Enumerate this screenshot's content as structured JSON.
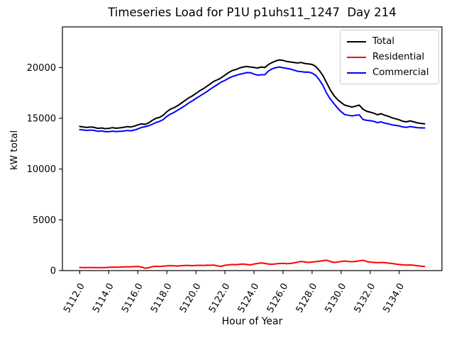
{
  "chart_data": {
    "type": "line",
    "title": "Timeseries Load for P1U p1uhs11_1247  Day 214",
    "xlabel": "Hour of Year",
    "ylabel": "kW total",
    "xlim": [
      5110.81,
      5136.94
    ],
    "ylim": [
      0,
      24000
    ],
    "grid": false,
    "xtick_values": [
      5112,
      5114,
      5116,
      5118,
      5120,
      5122,
      5124,
      5126,
      5128,
      5130,
      5132,
      5134
    ],
    "xtick_labels": [
      "5112.0",
      "5114.0",
      "5116.0",
      "5118.0",
      "5120.0",
      "5122.0",
      "5124.0",
      "5126.0",
      "5128.0",
      "5130.0",
      "5132.0",
      "5134.0"
    ],
    "ytick_values": [
      0,
      5000,
      10000,
      15000,
      20000
    ],
    "ytick_labels": [
      "0",
      "5000",
      "10000",
      "15000",
      "20000"
    ],
    "legend": {
      "position": "upper right",
      "entries": [
        "Total",
        "Residential",
        "Commercial"
      ]
    },
    "x": [
      5112.0,
      5112.25,
      5112.5,
      5112.75,
      5113.0,
      5113.25,
      5113.5,
      5113.75,
      5114.0,
      5114.25,
      5114.5,
      5114.75,
      5115.0,
      5115.25,
      5115.5,
      5115.75,
      5116.0,
      5116.25,
      5116.5,
      5116.75,
      5117.0,
      5117.25,
      5117.5,
      5117.75,
      5118.0,
      5118.25,
      5118.5,
      5118.75,
      5119.0,
      5119.25,
      5119.5,
      5119.75,
      5120.0,
      5120.25,
      5120.5,
      5120.75,
      5121.0,
      5121.25,
      5121.5,
      5121.75,
      5122.0,
      5122.25,
      5122.5,
      5122.75,
      5123.0,
      5123.25,
      5123.5,
      5123.75,
      5124.0,
      5124.25,
      5124.5,
      5124.75,
      5125.0,
      5125.25,
      5125.5,
      5125.75,
      5126.0,
      5126.25,
      5126.5,
      5126.75,
      5127.0,
      5127.25,
      5127.5,
      5127.75,
      5128.0,
      5128.25,
      5128.5,
      5128.75,
      5129.0,
      5129.25,
      5129.5,
      5129.75,
      5130.0,
      5130.25,
      5130.5,
      5130.75,
      5131.0,
      5131.25,
      5131.5,
      5131.75,
      5132.0,
      5132.25,
      5132.5,
      5132.75,
      5133.0,
      5133.25,
      5133.5,
      5133.75,
      5134.0,
      5134.25,
      5134.5,
      5134.75,
      5135.0,
      5135.25,
      5135.5,
      5135.75
    ],
    "series": [
      {
        "name": "Total",
        "color": "#000000",
        "values": [
          14200,
          14150,
          14100,
          14150,
          14100,
          14000,
          14050,
          13980,
          14000,
          14080,
          14020,
          14060,
          14100,
          14180,
          14140,
          14220,
          14350,
          14450,
          14400,
          14550,
          14800,
          15000,
          15100,
          15300,
          15650,
          15900,
          16050,
          16250,
          16500,
          16750,
          17000,
          17200,
          17450,
          17700,
          17900,
          18150,
          18400,
          18650,
          18800,
          19000,
          19250,
          19500,
          19700,
          19800,
          19950,
          20050,
          20100,
          20050,
          20000,
          19950,
          20050,
          20000,
          20300,
          20500,
          20650,
          20750,
          20700,
          20600,
          20550,
          20500,
          20450,
          20500,
          20400,
          20350,
          20300,
          20100,
          19700,
          19200,
          18500,
          17800,
          17250,
          16850,
          16550,
          16300,
          16200,
          16100,
          16200,
          16300,
          15900,
          15700,
          15600,
          15500,
          15350,
          15450,
          15300,
          15200,
          15050,
          14950,
          14850,
          14700,
          14650,
          14750,
          14650,
          14550,
          14500,
          14450
        ]
      },
      {
        "name": "Residential",
        "color": "#ff0000",
        "values": [
          310,
          300,
          295,
          305,
          295,
          285,
          290,
          300,
          320,
          340,
          330,
          345,
          360,
          380,
          370,
          390,
          400,
          350,
          230,
          280,
          390,
          420,
          400,
          430,
          460,
          490,
          470,
          450,
          480,
          510,
          500,
          490,
          500,
          520,
          510,
          530,
          520,
          540,
          460,
          420,
          520,
          560,
          600,
          580,
          620,
          640,
          600,
          560,
          650,
          700,
          760,
          700,
          640,
          620,
          660,
          700,
          720,
          680,
          700,
          760,
          820,
          900,
          860,
          800,
          840,
          880,
          920,
          980,
          1020,
          900,
          800,
          840,
          900,
          940,
          900,
          870,
          900,
          960,
          1020,
          900,
          840,
          800,
          780,
          800,
          780,
          740,
          700,
          650,
          600,
          560,
          540,
          560,
          520,
          480,
          440,
          400
        ]
      },
      {
        "name": "Commercial",
        "color": "#0000ff",
        "values": [
          13890,
          13850,
          13805,
          13845,
          13805,
          13715,
          13760,
          13680,
          13680,
          13740,
          13690,
          13715,
          13740,
          13800,
          13770,
          13830,
          13950,
          14100,
          14170,
          14270,
          14410,
          14580,
          14700,
          14870,
          15190,
          15410,
          15580,
          15800,
          16020,
          16240,
          16500,
          16710,
          16950,
          17180,
          17390,
          17620,
          17880,
          18110,
          18340,
          18580,
          18730,
          18940,
          19100,
          19220,
          19330,
          19410,
          19500,
          19490,
          19350,
          19250,
          19290,
          19300,
          19660,
          19880,
          19990,
          20050,
          19980,
          19920,
          19850,
          19740,
          19630,
          19600,
          19540,
          19550,
          19460,
          19220,
          18780,
          18220,
          17480,
          16900,
          16450,
          16010,
          15650,
          15360,
          15300,
          15230,
          15300,
          15340,
          14880,
          14800,
          14760,
          14700,
          14570,
          14650,
          14520,
          14460,
          14350,
          14300,
          14250,
          14140,
          14110,
          14190,
          14130,
          14070,
          14060,
          14050
        ]
      }
    ]
  }
}
